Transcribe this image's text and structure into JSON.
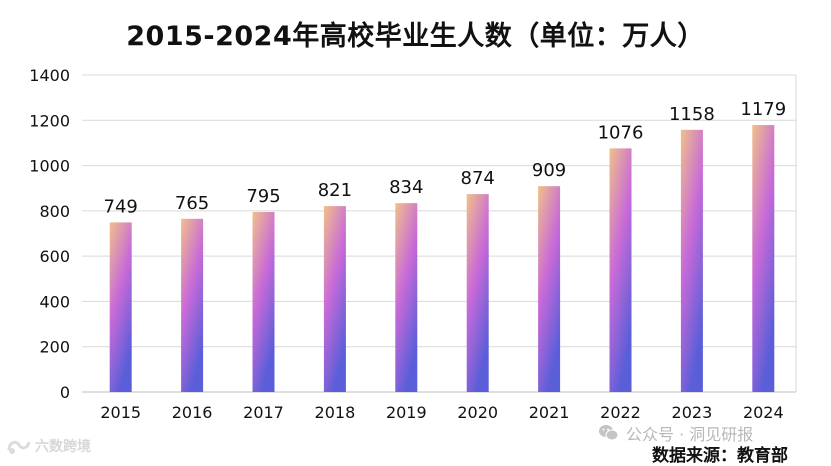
{
  "chart_data": {
    "type": "bar",
    "title": "2015-2024年高校毕业生人数（单位：万人）",
    "categories": [
      "2015",
      "2016",
      "2017",
      "2018",
      "2019",
      "2020",
      "2021",
      "2022",
      "2023",
      "2024"
    ],
    "values": [
      749,
      765,
      795,
      821,
      834,
      874,
      909,
      1076,
      1158,
      1179
    ],
    "yticks": [
      0,
      200,
      400,
      600,
      800,
      1000,
      1200,
      1400
    ],
    "ylim": [
      0,
      1400
    ],
    "xlabel": "",
    "ylabel": "",
    "grid": true,
    "legend": "none"
  },
  "colors": {
    "bar_top": "#f0c08a",
    "bar_mid": "#c86ad8",
    "bar_bottom": "#5a5ed8",
    "grid": "#d9d9d9",
    "axis": "#bfbfbf"
  },
  "watermark_left": "六数跨境",
  "watermark_right": "公众号 · 洞见研报",
  "source_note": "数据来源：教育部"
}
